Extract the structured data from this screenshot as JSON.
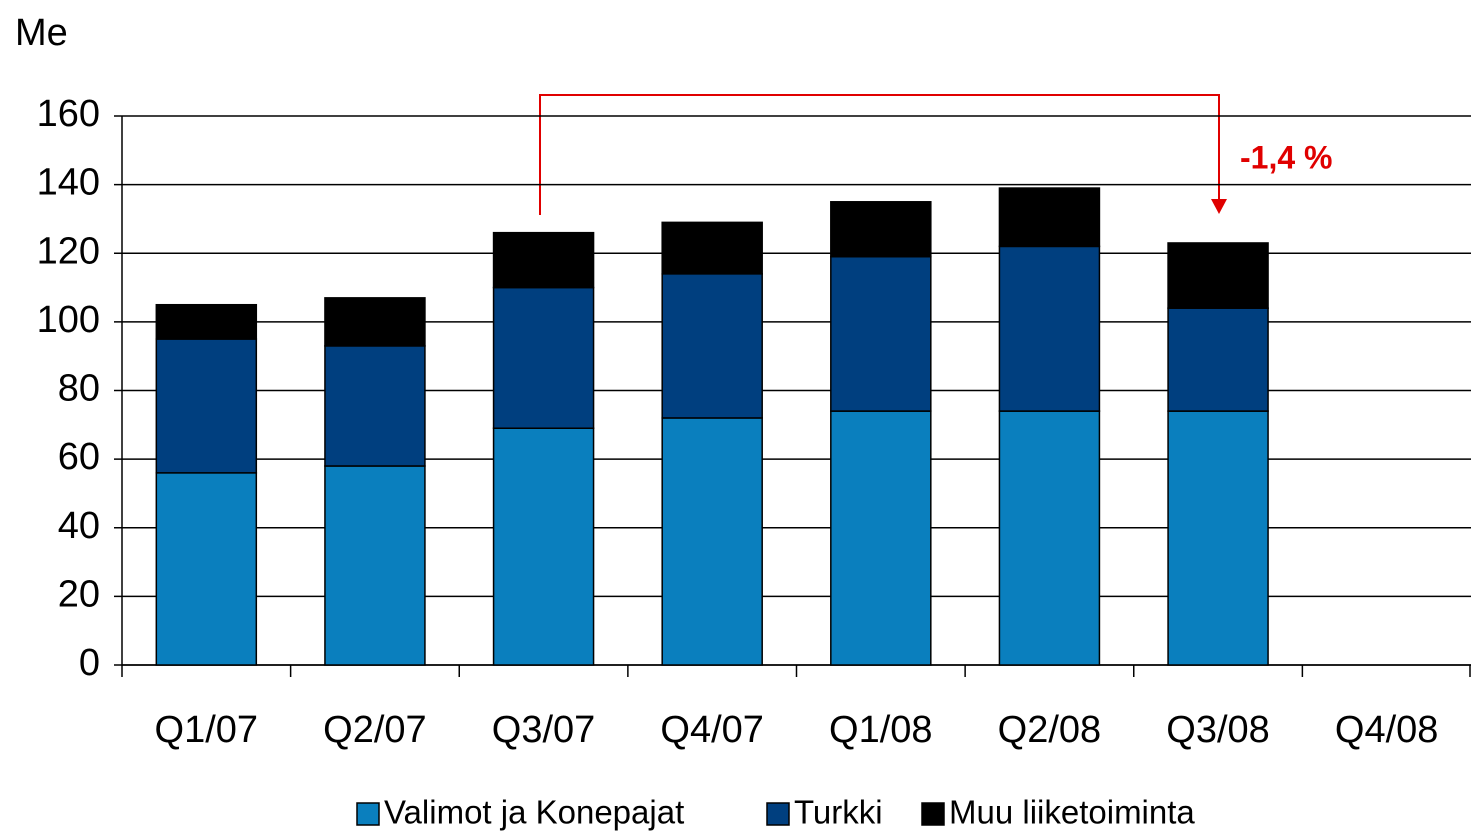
{
  "chart_data": {
    "type": "stacked_bar",
    "y_label": "Me",
    "annotation": "-1,4 %",
    "categories": [
      "Q1/07",
      "Q2/07",
      "Q3/07",
      "Q4/07",
      "Q1/08",
      "Q2/08",
      "Q3/08",
      "Q4/08"
    ],
    "series": [
      {
        "name": "Valimot ja Konepajat",
        "color": "#0a7fbe",
        "values": [
          56,
          58,
          69,
          72,
          74,
          74,
          74,
          null
        ]
      },
      {
        "name": "Turkki",
        "color": "#003f7f",
        "values": [
          39,
          35,
          41,
          42,
          45,
          48,
          30,
          null
        ]
      },
      {
        "name": "Muu liiketoiminta",
        "color": "#000000",
        "values": [
          10,
          14,
          16,
          15,
          16,
          17,
          19,
          null
        ]
      }
    ],
    "ylim": [
      0,
      160
    ],
    "yticks": [
      0,
      20,
      40,
      60,
      80,
      100,
      120,
      140,
      160
    ],
    "grid": true,
    "legend": "bottom"
  }
}
